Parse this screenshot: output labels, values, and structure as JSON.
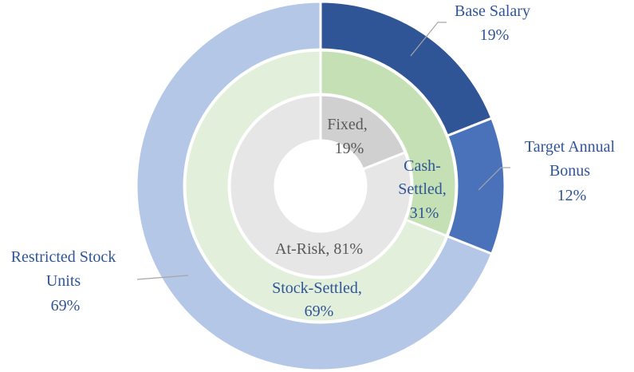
{
  "chart_data": {
    "type": "pie",
    "subtype": "multi-level-donut",
    "title": "",
    "rings": [
      {
        "name": "outer",
        "slices": [
          {
            "label": [
              "Base Salary"
            ],
            "value": 19,
            "value_text": "19%",
            "color": "#2f5597"
          },
          {
            "label": [
              "Target Annual",
              "Bonus"
            ],
            "value": 12,
            "value_text": "12%",
            "color": "#4a72bb"
          },
          {
            "label": [
              "Restricted Stock",
              "Units"
            ],
            "value": 69,
            "value_text": "69%",
            "color": "#b4c7e7"
          }
        ]
      },
      {
        "name": "middle",
        "slices": [
          {
            "label": [
              "Cash-",
              "Settled,"
            ],
            "value": 31,
            "value_text": "31%",
            "color": "#c5e0b4"
          },
          {
            "label": [
              "Stock-Settled,"
            ],
            "value": 69,
            "value_text": "69%",
            "color": "#e2efda"
          }
        ]
      },
      {
        "name": "inner",
        "slices": [
          {
            "label": [
              "Fixed,"
            ],
            "value": 19,
            "value_text": "19%",
            "color": "#d0d0d0"
          },
          {
            "label": [
              "At-Risk, 81%"
            ],
            "value": 81,
            "value_text": "",
            "color": "#e7e6e6"
          }
        ]
      }
    ],
    "start_angle_deg": 0,
    "direction": "clockwise"
  }
}
